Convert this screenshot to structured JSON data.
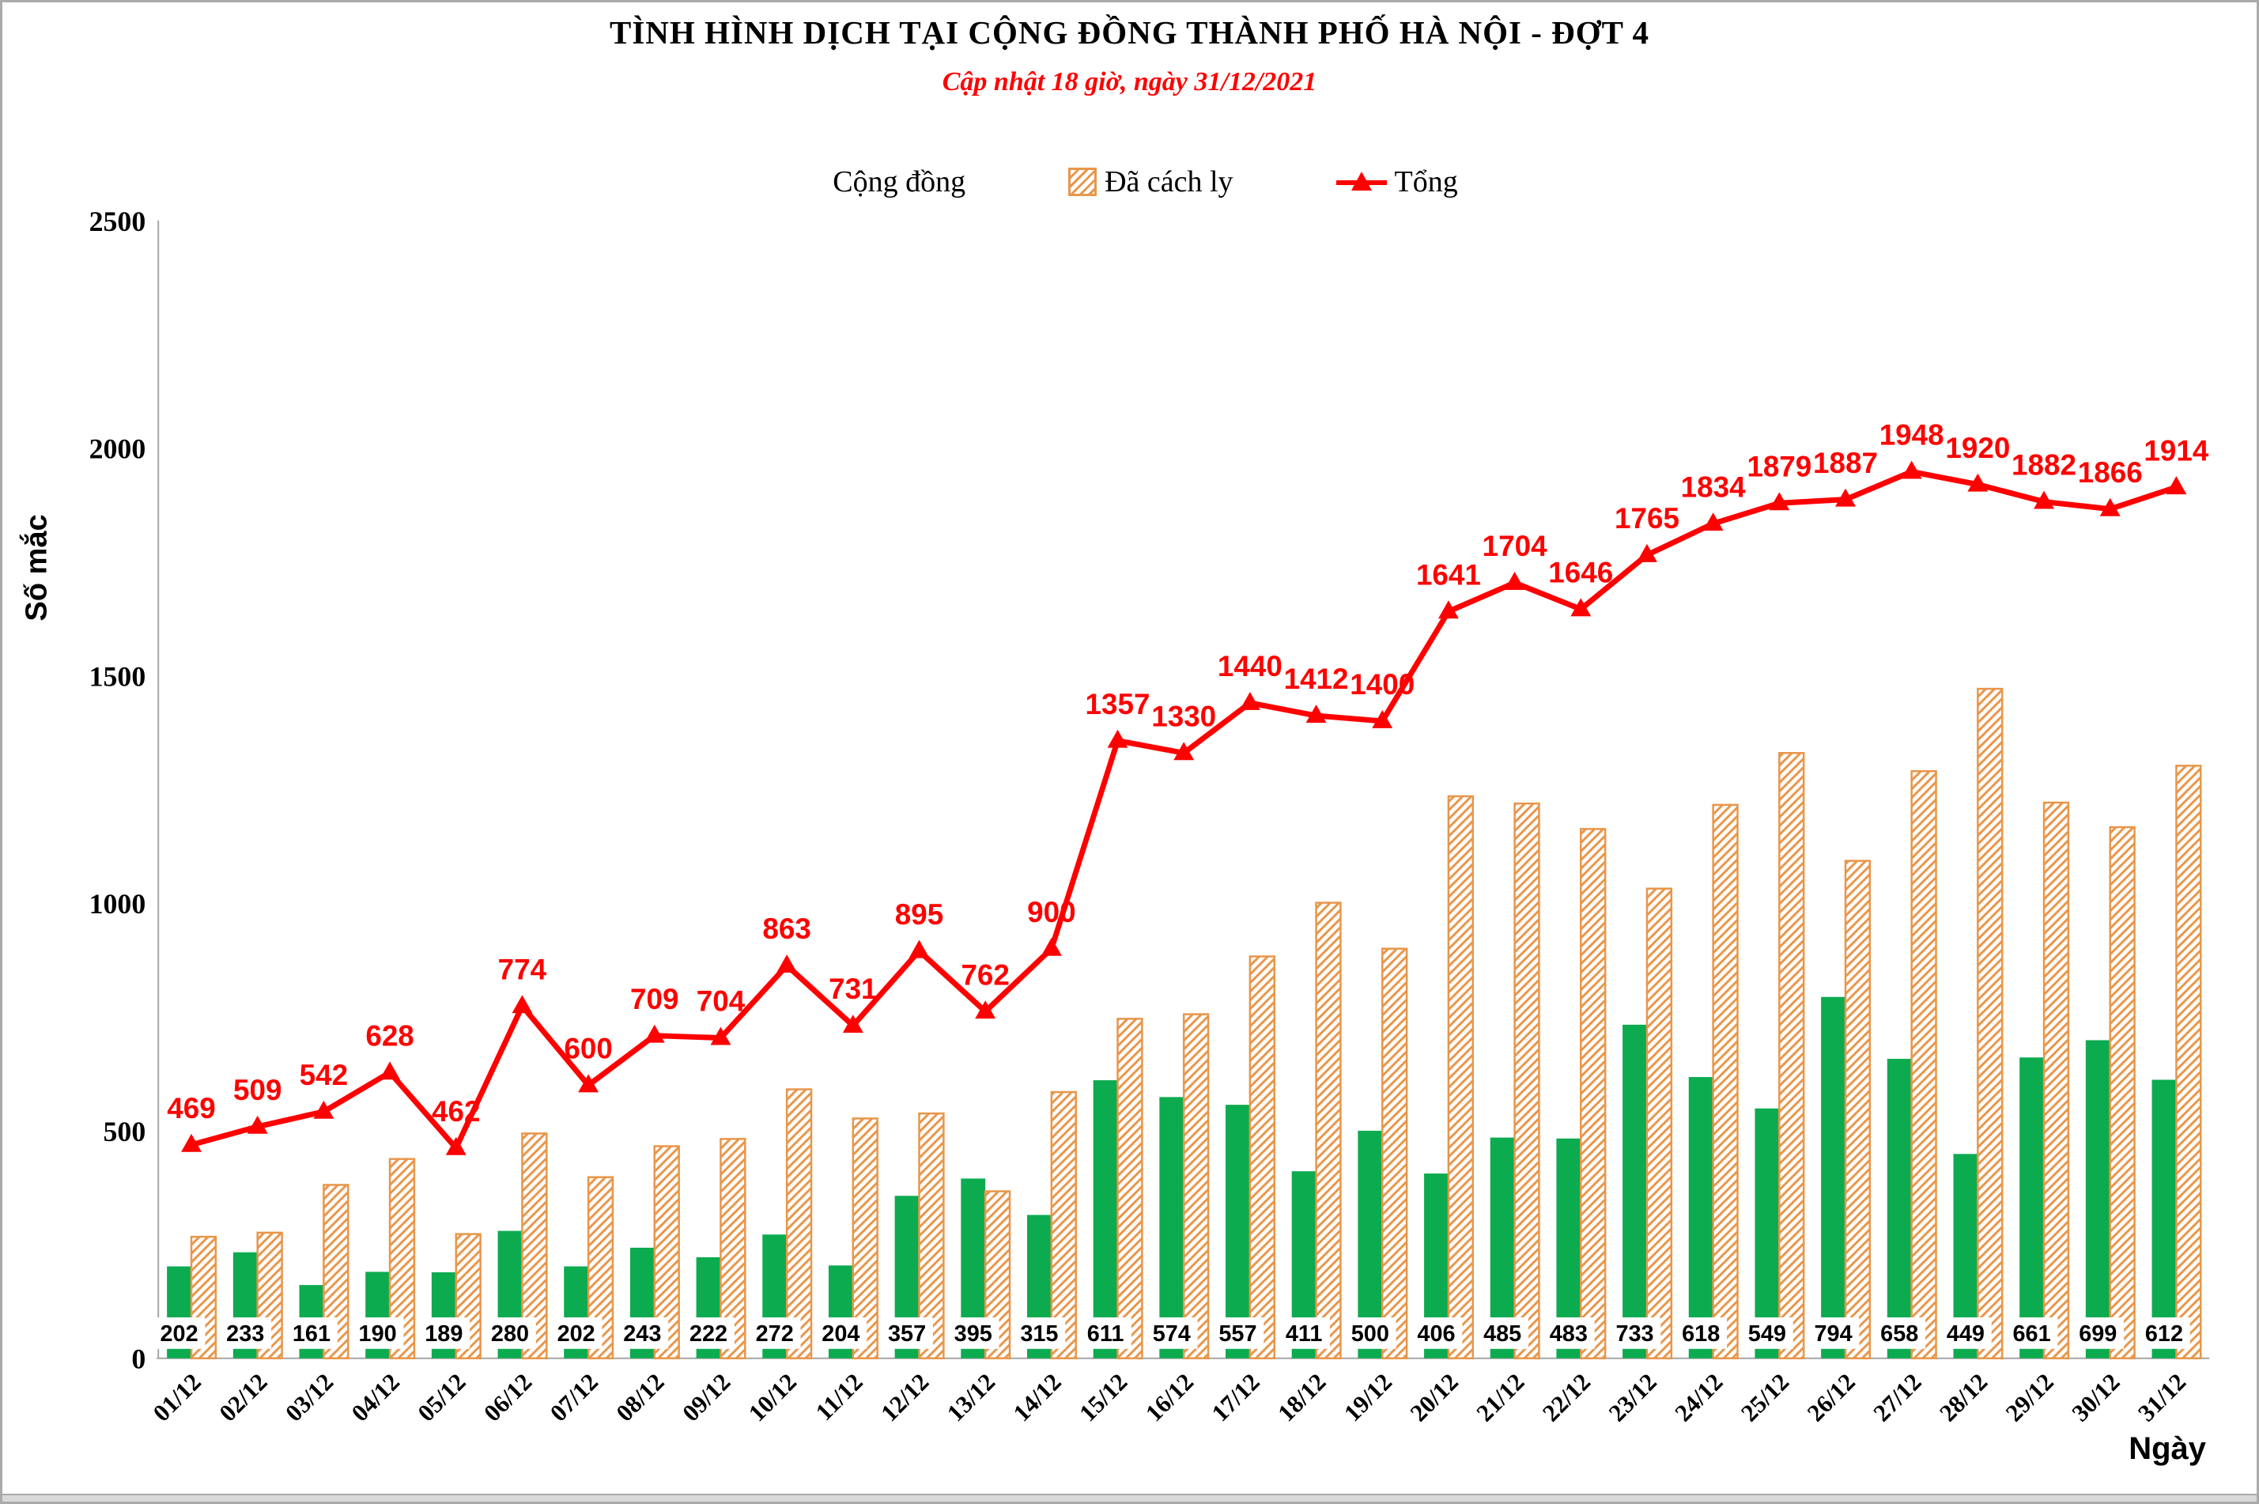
{
  "page": {
    "title": "TÌNH HÌNH DỊCH TẠI CỘNG ĐỒNG THÀNH PHỐ HÀ NỘI - ĐỢT 4",
    "subtitle": "Cập nhật 18 giờ, ngày 31/12/2021"
  },
  "colors": {
    "community_green": "#0cab50",
    "quarantine_orange": "#e8964a",
    "total_red": "#ff0000",
    "axis_gray": "#a6a6a6",
    "label_black": "#000000"
  },
  "chart_data": {
    "type": "bar+line combo",
    "title": "TÌNH HÌNH DỊCH TẠI CỘNG ĐỒNG THÀNH PHỐ HÀ NỘI - ĐỢT 4",
    "subtitle": "Cập nhật 18 giờ, ngày 31/12/2021",
    "xlabel": "Ngày",
    "ylabel": "Số mắc",
    "ylim": [
      0,
      2500
    ],
    "yticks": [
      0,
      500,
      1000,
      1500,
      2000,
      2500
    ],
    "grid": "off",
    "legend_position": "top",
    "categories": [
      "01/12",
      "02/12",
      "03/12",
      "04/12",
      "05/12",
      "06/12",
      "07/12",
      "08/12",
      "09/12",
      "10/12",
      "11/12",
      "12/12",
      "13/12",
      "14/12",
      "15/12",
      "16/12",
      "17/12",
      "18/12",
      "19/12",
      "20/12",
      "21/12",
      "22/12",
      "23/12",
      "24/12",
      "25/12",
      "26/12",
      "27/12",
      "28/12",
      "29/12",
      "30/12",
      "31/12"
    ],
    "series": [
      {
        "name": "Cộng đồng",
        "type": "bar",
        "style": "solid",
        "labels_shown": "at base in white boxes",
        "values": [
          202,
          233,
          161,
          190,
          189,
          280,
          202,
          243,
          222,
          272,
          204,
          357,
          395,
          315,
          611,
          574,
          557,
          411,
          500,
          406,
          485,
          483,
          733,
          618,
          549,
          794,
          658,
          449,
          661,
          699,
          612
        ]
      },
      {
        "name": "Đã cách ly",
        "type": "bar",
        "style": "diagonal-hatch",
        "labels_shown": "none",
        "values": [
          267,
          276,
          381,
          438,
          273,
          494,
          398,
          466,
          482,
          591,
          527,
          538,
          367,
          585,
          746,
          756,
          883,
          1001,
          900,
          1235,
          1219,
          1163,
          1032,
          1216,
          1330,
          1093,
          1290,
          1471,
          1221,
          1167,
          1302
        ]
      },
      {
        "name": "Tổng",
        "type": "line",
        "marker": "triangle",
        "labels_shown": "above markers",
        "values": [
          469,
          509,
          542,
          628,
          462,
          774,
          600,
          709,
          704,
          863,
          731,
          895,
          762,
          900,
          1357,
          1330,
          1440,
          1412,
          1400,
          1641,
          1704,
          1646,
          1765,
          1834,
          1879,
          1887,
          1948,
          1920,
          1882,
          1866,
          1914
        ]
      }
    ]
  }
}
